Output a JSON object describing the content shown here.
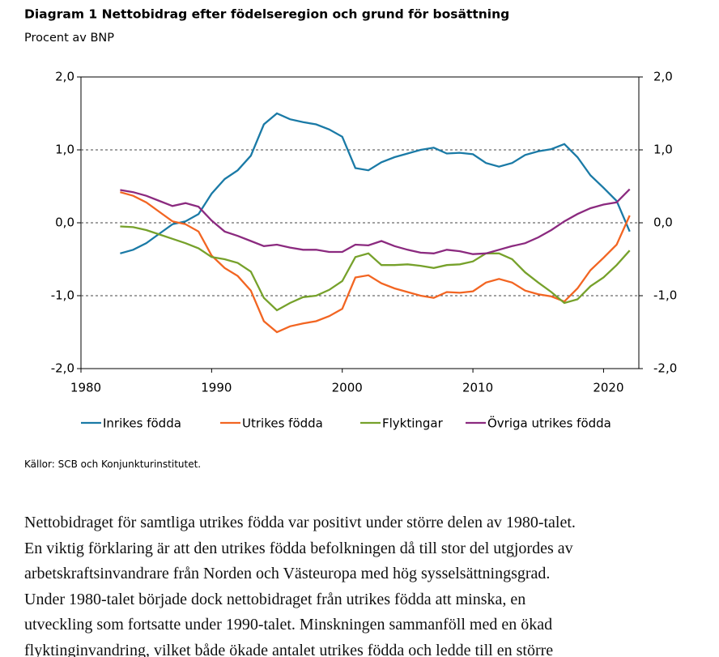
{
  "chart_data": {
    "type": "line",
    "title": "Diagram 1 Nettobidrag efter födelseregion och grund för bosättning",
    "subtitle": "Procent av BNP",
    "x": [
      1983,
      1984,
      1985,
      1986,
      1987,
      1988,
      1989,
      1990,
      1991,
      1992,
      1993,
      1994,
      1995,
      1996,
      1997,
      1998,
      1999,
      2000,
      2001,
      2002,
      2003,
      2004,
      2005,
      2006,
      2007,
      2008,
      2009,
      2010,
      2011,
      2012,
      2013,
      2014,
      2015,
      2016,
      2017,
      2018,
      2019,
      2020,
      2021,
      2022
    ],
    "series": [
      {
        "name": "Inrikes födda",
        "color": "#1a7aa6",
        "values": [
          -0.42,
          -0.37,
          -0.28,
          -0.15,
          -0.02,
          0.02,
          0.12,
          0.4,
          0.6,
          0.72,
          0.92,
          1.35,
          1.5,
          1.42,
          1.38,
          1.35,
          1.28,
          1.18,
          0.75,
          0.72,
          0.83,
          0.9,
          0.95,
          1.0,
          1.03,
          0.95,
          0.96,
          0.94,
          0.82,
          0.77,
          0.82,
          0.93,
          0.98,
          1.01,
          1.08,
          0.9,
          0.65,
          0.48,
          0.3,
          -0.12
        ]
      },
      {
        "name": "Utrikes födda",
        "color": "#f26522",
        "values": [
          0.42,
          0.37,
          0.28,
          0.15,
          0.02,
          -0.02,
          -0.12,
          -0.45,
          -0.62,
          -0.73,
          -0.93,
          -1.35,
          -1.5,
          -1.42,
          -1.38,
          -1.35,
          -1.28,
          -1.18,
          -0.75,
          -0.72,
          -0.83,
          -0.9,
          -0.95,
          -1.0,
          -1.03,
          -0.95,
          -0.96,
          -0.94,
          -0.82,
          -0.77,
          -0.82,
          -0.93,
          -0.98,
          -1.01,
          -1.08,
          -0.9,
          -0.65,
          -0.48,
          -0.3,
          0.1
        ]
      },
      {
        "name": "Flyktingar",
        "color": "#76a12b",
        "values": [
          -0.05,
          -0.06,
          -0.1,
          -0.16,
          -0.22,
          -0.28,
          -0.35,
          -0.47,
          -0.5,
          -0.55,
          -0.67,
          -1.03,
          -1.2,
          -1.1,
          -1.02,
          -1.0,
          -0.92,
          -0.8,
          -0.47,
          -0.42,
          -0.58,
          -0.58,
          -0.57,
          -0.59,
          -0.62,
          -0.58,
          -0.57,
          -0.53,
          -0.42,
          -0.42,
          -0.5,
          -0.68,
          -0.82,
          -0.95,
          -1.1,
          -1.05,
          -0.87,
          -0.75,
          -0.58,
          -0.38
        ]
      },
      {
        "name": "Övriga utrikes födda",
        "color": "#8b2a7f",
        "values": [
          0.45,
          0.42,
          0.37,
          0.3,
          0.23,
          0.27,
          0.22,
          0.03,
          -0.12,
          -0.18,
          -0.25,
          -0.32,
          -0.3,
          -0.34,
          -0.37,
          -0.37,
          -0.4,
          -0.4,
          -0.3,
          -0.31,
          -0.25,
          -0.32,
          -0.37,
          -0.41,
          -0.42,
          -0.37,
          -0.39,
          -0.43,
          -0.42,
          -0.37,
          -0.32,
          -0.28,
          -0.2,
          -0.1,
          0.02,
          0.12,
          0.2,
          0.25,
          0.28,
          0.46
        ]
      }
    ],
    "xlim": [
      1980,
      2022.7
    ],
    "xticks": [
      1980,
      1990,
      2000,
      2010,
      2020
    ],
    "ylim": [
      -2,
      2
    ],
    "yticks": [
      {
        "value": -2,
        "label": "-2,0"
      },
      {
        "value": -1,
        "label": "-1,0"
      },
      {
        "value": 0,
        "label": "0,0"
      },
      {
        "value": 1,
        "label": "1,0"
      },
      {
        "value": 2,
        "label": "2,0"
      }
    ],
    "grid": true
  },
  "source": "Källor: SCB och Konjunkturinstitutet.",
  "paragraph_lines": [
    "Nettobidraget för samtliga utrikes födda var positivt under större delen av 1980-talet.",
    "En viktig förklaring är att den utrikes födda befolkningen då till stor del utgjordes av",
    "arbetskraftsinvandrare från Norden och Västeuropa med hög sysselsättningsgrad.",
    "Under 1980-talet började dock nettobidraget från utrikes födda att minska, en",
    "utveckling som fortsatte under 1990-talet. Minskningen sammanföll med en ökad",
    "flyktinginvandring, vilket både ökade antalet utrikes födda och ledde till en större"
  ]
}
